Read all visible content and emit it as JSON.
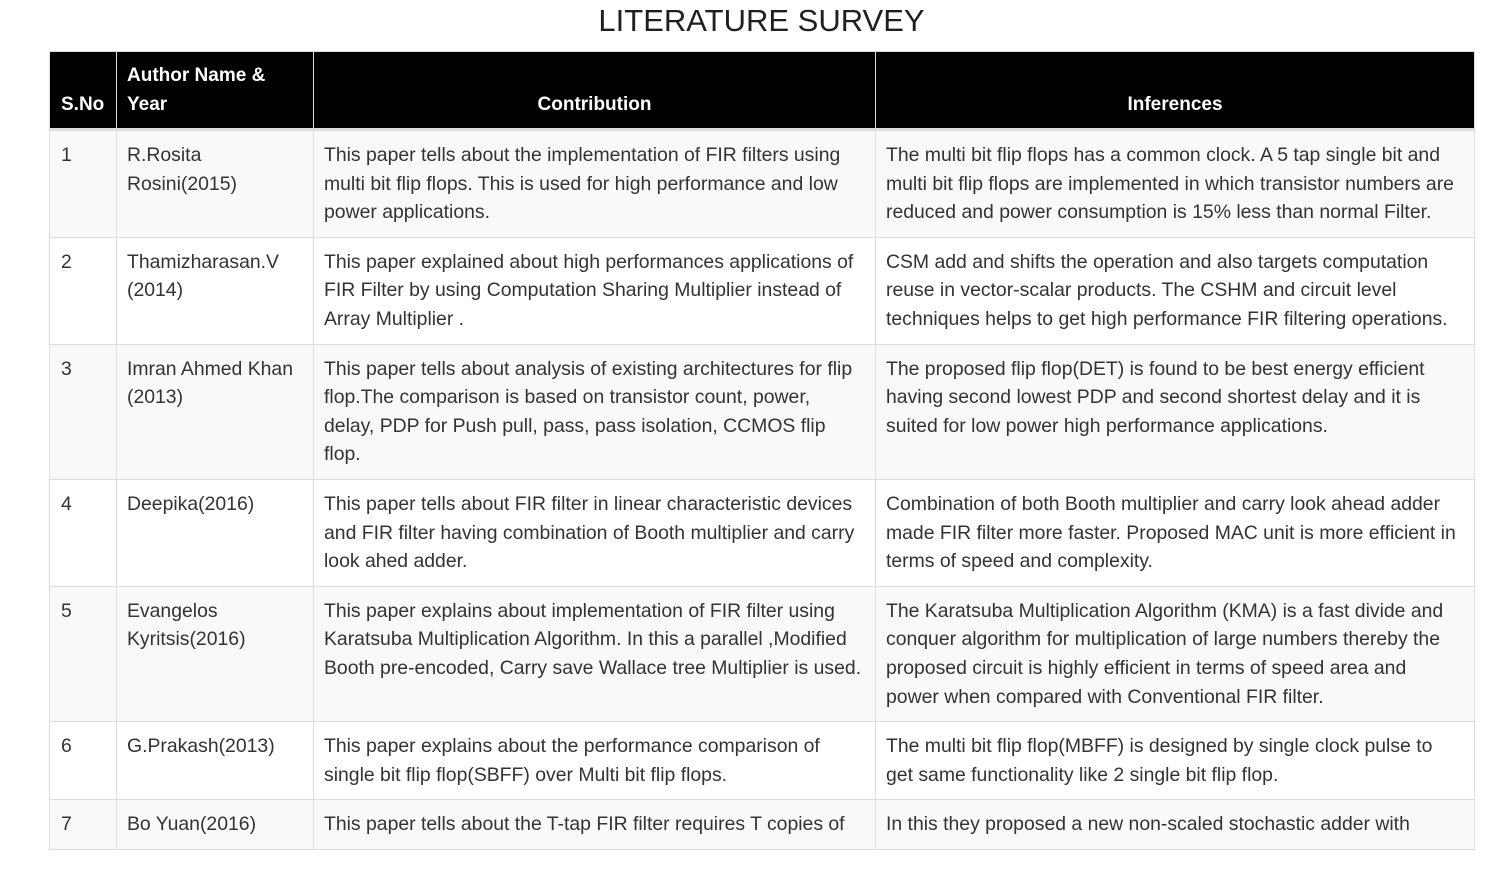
{
  "title": "LITERATURE SURVEY",
  "headers": {
    "sno": "S.No",
    "author": "Author Name & Year",
    "contribution": "Contribution",
    "inferences": "Inferences"
  },
  "rows": [
    {
      "sno": "1",
      "author": "R.Rosita Rosini(2015)",
      "contribution": "This paper tells about the implementation of FIR filters using multi bit flip flops. This is used for high performance and low power applications.",
      "inference": "The multi bit flip flops has a common clock. A 5 tap single bit and multi bit flip flops are implemented in which transistor numbers are reduced and power consumption is 15% less than normal Filter."
    },
    {
      "sno": "2",
      "author": "Thamizharasan.V (2014)",
      "contribution": "This paper explained about high performances applications of FIR Filter by using Computation Sharing Multiplier instead of Array Multiplier .",
      "inference": "CSM add and shifts the operation and also targets computation reuse in vector-scalar products. The CSHM and circuit level techniques helps to get high performance FIR filtering operations."
    },
    {
      "sno": "3",
      "author": "Imran Ahmed Khan (2013)",
      "contribution": "This paper tells about analysis of existing architectures for flip flop.The comparison is based on transistor count, power, delay, PDP for Push pull, pass, pass isolation, CCMOS flip flop.",
      "inference": "The proposed flip flop(DET) is found to be best energy efficient having second lowest PDP and second shortest delay and it is suited for low power high performance applications."
    },
    {
      "sno": "4",
      "author": "Deepika(2016)",
      "contribution": "This paper tells about FIR filter in linear characteristic devices and FIR filter having combination of Booth multiplier and carry look ahed adder.",
      "inference": "Combination of both Booth multiplier and carry look ahead adder made FIR filter more faster. Proposed MAC unit is more efficient in terms of speed and complexity."
    },
    {
      "sno": "5",
      "author": "Evangelos Kyritsis(2016)",
      "contribution": "This paper explains about implementation of FIR filter using Karatsuba Multiplication Algorithm. In this a parallel ,Modified Booth pre-encoded, Carry save Wallace tree Multiplier is used.",
      "inference": "The Karatsuba Multiplication Algorithm (KMA) is a fast divide and conquer algorithm for multiplication of large numbers thereby the proposed circuit is highly efficient in terms of speed area and power when compared with Conventional FIR filter."
    },
    {
      "sno": "6",
      "author": "G.Prakash(2013)",
      "contribution": "This paper explains about the performance comparison of single bit flip flop(SBFF) over Multi bit flip flops.",
      "inference": "The multi bit flip flop(MBFF) is designed by single clock pulse to get same functionality like 2 single bit flip flop."
    },
    {
      "sno": "7",
      "author": "Bo Yuan(2016)",
      "contribution": "This paper tells about the T-tap FIR filter requires T copies of",
      "inference": "In this they proposed a new non-scaled stochastic adder with"
    }
  ]
}
